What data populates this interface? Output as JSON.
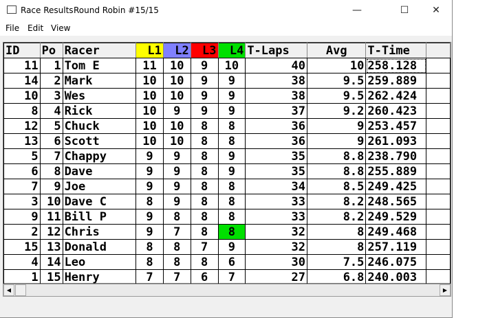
{
  "window": {
    "title": "Race Results",
    "subtitle": "Round Robin #15/15",
    "minimize": "—",
    "maximize": "☐",
    "close": "✕"
  },
  "menu": [
    "File",
    "Edit",
    "View"
  ],
  "colors": {
    "L1": "#ffff00",
    "L2": "#8080ff",
    "L3": "#ff0000",
    "L4": "#00e000",
    "highlight": "#00e000"
  },
  "columns": [
    "ID",
    "Po",
    "Racer",
    "L1",
    "L2",
    "L3",
    "L4",
    "T-Laps",
    "Avg",
    "T-Time"
  ],
  "rows": [
    [
      "11",
      "1",
      "Tom E",
      "11",
      "10",
      "9",
      "10",
      "40",
      "10",
      "258.128"
    ],
    [
      "14",
      "2",
      "Mark",
      "10",
      "10",
      "9",
      "9",
      "38",
      "9.5",
      "259.889"
    ],
    [
      "10",
      "3",
      "Wes",
      "10",
      "10",
      "9",
      "9",
      "38",
      "9.5",
      "262.424"
    ],
    [
      "8",
      "4",
      "Rick",
      "10",
      "9",
      "9",
      "9",
      "37",
      "9.2",
      "260.423"
    ],
    [
      "12",
      "5",
      "Chuck",
      "10",
      "10",
      "8",
      "8",
      "36",
      "9",
      "253.457"
    ],
    [
      "13",
      "6",
      "Scott",
      "10",
      "10",
      "8",
      "8",
      "36",
      "9",
      "261.093"
    ],
    [
      "5",
      "7",
      "Chappy",
      "9",
      "9",
      "8",
      "9",
      "35",
      "8.8",
      "238.790"
    ],
    [
      "6",
      "8",
      "Dave",
      "9",
      "9",
      "8",
      "9",
      "35",
      "8.8",
      "255.889"
    ],
    [
      "7",
      "9",
      "Joe",
      "9",
      "9",
      "8",
      "8",
      "34",
      "8.5",
      "249.425"
    ],
    [
      "3",
      "10",
      "Dave C",
      "8",
      "9",
      "8",
      "8",
      "33",
      "8.2",
      "248.565"
    ],
    [
      "9",
      "11",
      "Bill P",
      "9",
      "8",
      "8",
      "8",
      "33",
      "8.2",
      "249.529"
    ],
    [
      "2",
      "12",
      "Chris",
      "9",
      "7",
      "8",
      "8",
      "32",
      "8",
      "249.468"
    ],
    [
      "15",
      "13",
      "Donald",
      "8",
      "8",
      "7",
      "9",
      "32",
      "8",
      "257.119"
    ],
    [
      "4",
      "14",
      "Leo",
      "8",
      "8",
      "8",
      "6",
      "30",
      "7.5",
      "246.075"
    ],
    [
      "1",
      "15",
      "Henry",
      "7",
      "7",
      "6",
      "7",
      "27",
      "6.8",
      "240.003"
    ]
  ],
  "highlighted_cell": {
    "row": 11,
    "col": 6
  },
  "selected_cell": {
    "row": 0,
    "col": 9
  },
  "scrollbar": {
    "left": "◀",
    "right": "▶"
  }
}
